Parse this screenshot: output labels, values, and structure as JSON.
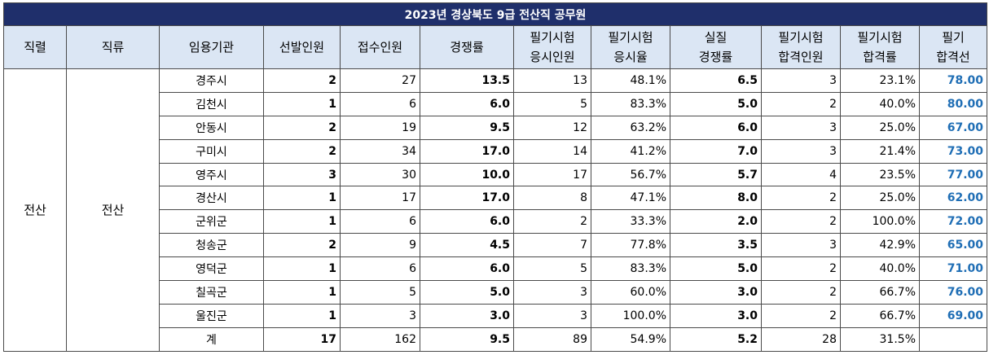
{
  "title": "2023년 경상북도 9급 전산직 공무원",
  "headers": [
    "직렬",
    "직류",
    "임용기관",
    "선발인원",
    "접수인원",
    "경쟁률",
    "필기시험\n응시인원",
    "필기시험\n응시율",
    "실질\n경쟁률",
    "필기시험\n합격인원",
    "필기시험\n합격률",
    "필기\n합격선"
  ],
  "series_label": "전산",
  "kind_label": "전산",
  "rows": [
    {
      "org": "경주시",
      "select": "2",
      "apply": "27",
      "rate": "13.5",
      "take": "13",
      "take_rate": "48.1%",
      "real_rate": "6.5",
      "pass": "3",
      "pass_rate": "23.1%",
      "cutoff": "78.00"
    },
    {
      "org": "김천시",
      "select": "1",
      "apply": "6",
      "rate": "6.0",
      "take": "5",
      "take_rate": "83.3%",
      "real_rate": "5.0",
      "pass": "2",
      "pass_rate": "40.0%",
      "cutoff": "80.00"
    },
    {
      "org": "안동시",
      "select": "2",
      "apply": "19",
      "rate": "9.5",
      "take": "12",
      "take_rate": "63.2%",
      "real_rate": "6.0",
      "pass": "3",
      "pass_rate": "25.0%",
      "cutoff": "67.00"
    },
    {
      "org": "구미시",
      "select": "2",
      "apply": "34",
      "rate": "17.0",
      "take": "14",
      "take_rate": "41.2%",
      "real_rate": "7.0",
      "pass": "3",
      "pass_rate": "21.4%",
      "cutoff": "73.00"
    },
    {
      "org": "영주시",
      "select": "3",
      "apply": "30",
      "rate": "10.0",
      "take": "17",
      "take_rate": "56.7%",
      "real_rate": "5.7",
      "pass": "4",
      "pass_rate": "23.5%",
      "cutoff": "77.00"
    },
    {
      "org": "경산시",
      "select": "1",
      "apply": "17",
      "rate": "17.0",
      "take": "8",
      "take_rate": "47.1%",
      "real_rate": "8.0",
      "pass": "2",
      "pass_rate": "25.0%",
      "cutoff": "62.00"
    },
    {
      "org": "군위군",
      "select": "1",
      "apply": "6",
      "rate": "6.0",
      "take": "2",
      "take_rate": "33.3%",
      "real_rate": "2.0",
      "pass": "2",
      "pass_rate": "100.0%",
      "cutoff": "72.00"
    },
    {
      "org": "청송군",
      "select": "2",
      "apply": "9",
      "rate": "4.5",
      "take": "7",
      "take_rate": "77.8%",
      "real_rate": "3.5",
      "pass": "3",
      "pass_rate": "42.9%",
      "cutoff": "65.00"
    },
    {
      "org": "영덕군",
      "select": "1",
      "apply": "6",
      "rate": "6.0",
      "take": "5",
      "take_rate": "83.3%",
      "real_rate": "5.0",
      "pass": "2",
      "pass_rate": "40.0%",
      "cutoff": "71.00"
    },
    {
      "org": "칠곡군",
      "select": "1",
      "apply": "5",
      "rate": "5.0",
      "take": "3",
      "take_rate": "60.0%",
      "real_rate": "3.0",
      "pass": "2",
      "pass_rate": "66.7%",
      "cutoff": "76.00"
    },
    {
      "org": "울진군",
      "select": "1",
      "apply": "3",
      "rate": "3.0",
      "take": "3",
      "take_rate": "100.0%",
      "real_rate": "3.0",
      "pass": "2",
      "pass_rate": "66.7%",
      "cutoff": "69.00"
    }
  ],
  "total": {
    "org": "계",
    "select": "17",
    "apply": "162",
    "rate": "9.5",
    "take": "89",
    "take_rate": "54.9%",
    "real_rate": "5.2",
    "pass": "28",
    "pass_rate": "31.5%",
    "cutoff": ""
  }
}
